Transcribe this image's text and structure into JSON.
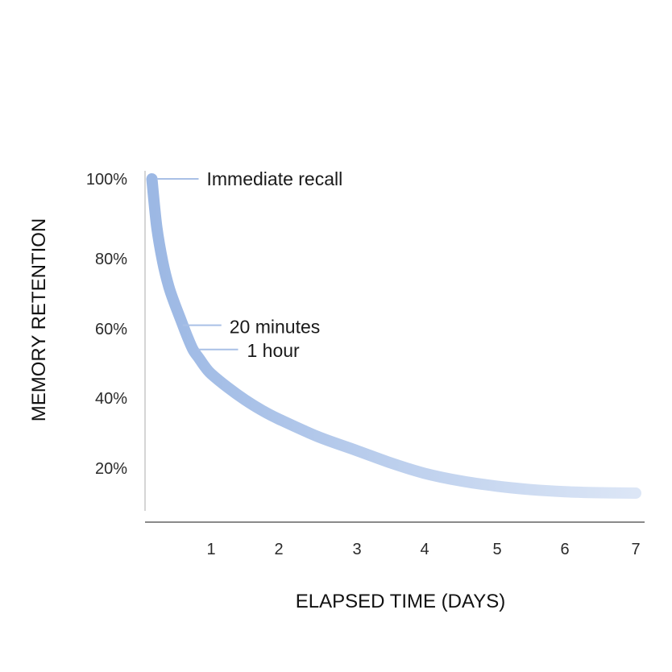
{
  "chart_data": {
    "type": "line",
    "title": "",
    "xlabel": "ELAPSED TIME (DAYS)",
    "ylabel": "MEMORY RETENTION",
    "x_ticks": [
      1,
      2,
      3,
      4,
      5,
      6,
      7
    ],
    "x_tick_labels": [
      "1",
      "2",
      "3",
      "4",
      "5",
      "6",
      "7"
    ],
    "y_ticks": [
      20,
      40,
      60,
      80,
      100
    ],
    "y_tick_labels": [
      "20%",
      "40%",
      "60%",
      "80%",
      "100%"
    ],
    "xlim": [
      0,
      7
    ],
    "ylim": [
      0,
      105
    ],
    "grid": false,
    "series": [
      {
        "color": "#9cb8e4",
        "x": [
          0.02,
          0.1,
          0.2,
          0.3,
          0.4,
          0.5,
          0.6,
          0.7,
          0.8,
          0.9,
          1.0,
          1.25,
          1.5,
          1.75,
          2.0,
          2.5,
          3.0,
          3.5,
          4.0,
          4.5,
          5.0,
          5.5,
          6.0,
          6.5,
          7.0
        ],
        "y": [
          100,
          88,
          79,
          72,
          67,
          62.5,
          58,
          54,
          51.5,
          49,
          47,
          43,
          39.5,
          36.5,
          34,
          29,
          25,
          21.5,
          18.5,
          16.3,
          14.8,
          13.8,
          13.2,
          12.9,
          12.8
        ]
      }
    ],
    "annotations": [
      {
        "text": "Immediate recall",
        "x": 0.02,
        "y": 100
      },
      {
        "text": "20 minutes",
        "x": 0.45,
        "y": 61
      },
      {
        "text": "1 hour",
        "x": 0.7,
        "y": 54
      }
    ]
  }
}
